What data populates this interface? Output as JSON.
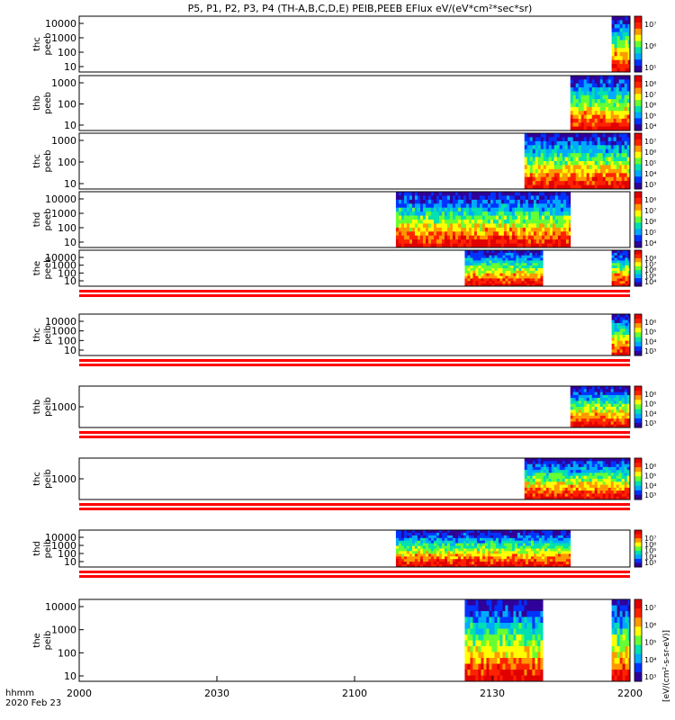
{
  "chart_data": {
    "type": "heatmap",
    "title": "P5, P1, P2, P3, P4 (TH-A,B,C,D,E) PEIB,PEEB EFlux eV/(eV*cm²*sec*sr)",
    "colorbar_label": "[eV/(cm²-s-sr-eV)]",
    "x_axis": {
      "range": [
        2000,
        2200
      ],
      "ticks": [
        "2000",
        "2030",
        "2100",
        "2130",
        "2200"
      ],
      "tick_values": [
        0,
        30,
        60,
        90,
        120
      ],
      "units_label": "hhmm",
      "date_label": "2020 Feb 23"
    },
    "colormap": [
      "#30009a",
      "#0033ff",
      "#00aaff",
      "#00e0b0",
      "#66ff33",
      "#ffff00",
      "#ff9900",
      "#ff2200",
      "#e00000"
    ],
    "panels": [
      {
        "label": [
          "thc",
          "peeb"
        ],
        "y_ticks": [
          "10000",
          "1000",
          "100",
          "10"
        ],
        "cb_ticks": [
          "10⁷",
          "10⁶",
          "10⁵"
        ],
        "coverage": [
          [
            116,
            120
          ]
        ],
        "sep_after": false
      },
      {
        "label": [
          "thb",
          "peeb"
        ],
        "y_ticks": [
          "1000",
          "100",
          "10"
        ],
        "cb_ticks": [
          "10⁸",
          "10⁷",
          "10⁶",
          "10⁵",
          "10⁴"
        ],
        "coverage": [
          [
            107,
            120
          ]
        ],
        "sep_after": false
      },
      {
        "label": [
          "thc",
          "peeb"
        ],
        "y_ticks": [
          "1000",
          "100",
          "10"
        ],
        "cb_ticks": [
          "10⁷",
          "10⁶",
          "10⁵",
          "10⁴",
          "10³"
        ],
        "coverage": [
          [
            97,
            120
          ]
        ],
        "sep_after": false
      },
      {
        "label": [
          "thd",
          "peeb"
        ],
        "y_ticks": [
          "10000",
          "1000",
          "100",
          "10"
        ],
        "cb_ticks": [
          "10⁸",
          "10⁷",
          "10⁶",
          "10⁵",
          "10⁴"
        ],
        "coverage": [
          [
            69,
            107
          ]
        ],
        "sep_after": false
      },
      {
        "label": [
          "the",
          "peeb"
        ],
        "y_ticks": [
          "10000",
          "1000",
          "100",
          "10"
        ],
        "cb_ticks": [
          "10⁸",
          "10⁷",
          "10⁶",
          "10⁵",
          "10⁴"
        ],
        "coverage": [
          [
            84,
            101
          ],
          [
            116,
            120
          ]
        ],
        "sep_after": true
      },
      {
        "label": [
          "thc",
          "peib"
        ],
        "y_ticks": [
          "10000",
          "1000",
          "100",
          "10"
        ],
        "cb_ticks": [
          "10⁶",
          "10⁵",
          "10⁴",
          "10³"
        ],
        "coverage": [
          [
            116,
            120
          ]
        ],
        "sep_after": true
      },
      {
        "label": [
          "thb",
          "peib"
        ],
        "y_ticks": [
          "1000"
        ],
        "cb_ticks": [
          "10⁶",
          "10⁵",
          "10⁴",
          "10³"
        ],
        "coverage": [
          [
            107,
            120
          ]
        ],
        "sep_after": true
      },
      {
        "label": [
          "thc",
          "peib"
        ],
        "y_ticks": [
          "1000"
        ],
        "cb_ticks": [
          "10⁶",
          "10⁵",
          "10⁴",
          "10³"
        ],
        "coverage": [
          [
            97,
            120
          ]
        ],
        "sep_after": true
      },
      {
        "label": [
          "thd",
          "peib"
        ],
        "y_ticks": [
          "10000",
          "1000",
          "100",
          "10"
        ],
        "cb_ticks": [
          "10⁷",
          "10⁶",
          "10⁵",
          "10⁴",
          "10³"
        ],
        "coverage": [
          [
            69,
            107
          ]
        ],
        "sep_after": true
      },
      {
        "label": [
          "the",
          "peib"
        ],
        "y_ticks": [
          "10000",
          "1000",
          "100",
          "10"
        ],
        "cb_ticks": [
          "10⁷",
          "10⁶",
          "10⁵",
          "10⁴",
          "10³"
        ],
        "coverage": [
          [
            84,
            101
          ],
          [
            116,
            120
          ]
        ],
        "sep_after": false
      }
    ]
  }
}
